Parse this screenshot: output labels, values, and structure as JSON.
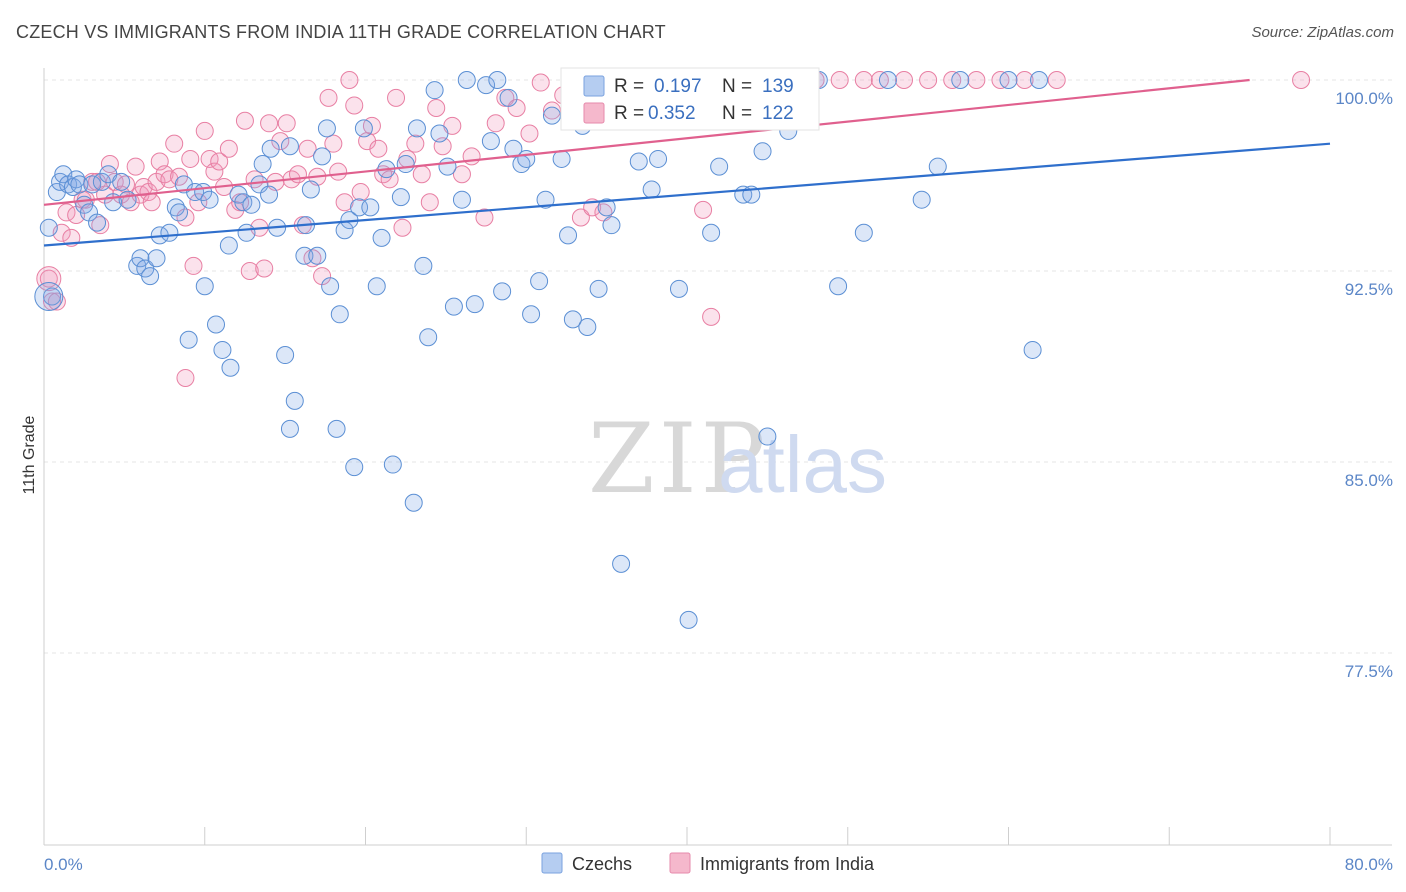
{
  "header": {
    "title": "CZECH VS IMMIGRANTS FROM INDIA 11TH GRADE CORRELATION CHART",
    "source": "Source: ZipAtlas.com"
  },
  "watermark": {
    "zip": "ZIP",
    "atlas": "atlas"
  },
  "legend_top": {
    "r_label": "R =",
    "n_label": "N =",
    "czechs": {
      "r": "0.197",
      "n": "139"
    },
    "india": {
      "r": "0.352",
      "n": "122"
    }
  },
  "bottom_legend": {
    "czechs": "Czechs",
    "india": "Immigrants from India"
  },
  "colors": {
    "czechs": "#5b8fd4",
    "india": "#e87fa3",
    "czechs_line": "#2f6fcc",
    "india_line": "#e0608e",
    "tick_text": "#5b86c7"
  },
  "chart_data": {
    "type": "scatter",
    "title": "CZECH VS IMMIGRANTS FROM INDIA 11TH GRADE CORRELATION CHART",
    "xlabel": "",
    "ylabel": "11th Grade",
    "xlim": [
      0,
      80
    ],
    "ylim": [
      70,
      101.5
    ],
    "x_tick_labels": [
      "0.0%",
      "80.0%"
    ],
    "y_ticks": [
      77.5,
      85.0,
      92.5,
      100.0
    ],
    "y_tick_labels": [
      "77.5%",
      "85.0%",
      "92.5%",
      "100.0%"
    ],
    "grid": true,
    "legend_position": "top-center",
    "series": [
      {
        "name": "Czechs",
        "trend": {
          "x": [
            0,
            80
          ],
          "y": [
            93.5,
            97.5
          ]
        },
        "points": [
          [
            0.3,
            94.2
          ],
          [
            0.5,
            91.5
          ],
          [
            0.8,
            95.6
          ],
          [
            1.0,
            96.0
          ],
          [
            1.2,
            96.3
          ],
          [
            1.5,
            95.9
          ],
          [
            1.8,
            95.8
          ],
          [
            2.0,
            96.1
          ],
          [
            2.2,
            95.9
          ],
          [
            2.5,
            95.1
          ],
          [
            2.8,
            94.8
          ],
          [
            3.0,
            95.9
          ],
          [
            3.3,
            94.4
          ],
          [
            3.6,
            96.0
          ],
          [
            4.0,
            96.3
          ],
          [
            4.3,
            95.2
          ],
          [
            4.8,
            96.0
          ],
          [
            5.2,
            95.3
          ],
          [
            5.8,
            92.7
          ],
          [
            6.0,
            93.0
          ],
          [
            6.3,
            92.6
          ],
          [
            6.6,
            92.3
          ],
          [
            7.0,
            93.0
          ],
          [
            7.2,
            93.9
          ],
          [
            7.8,
            94.0
          ],
          [
            8.2,
            95.0
          ],
          [
            8.4,
            94.8
          ],
          [
            8.7,
            95.9
          ],
          [
            9.0,
            89.8
          ],
          [
            9.4,
            95.6
          ],
          [
            9.9,
            95.6
          ],
          [
            10.0,
            91.9
          ],
          [
            10.3,
            95.3
          ],
          [
            10.7,
            90.4
          ],
          [
            11.1,
            89.4
          ],
          [
            11.5,
            93.5
          ],
          [
            11.6,
            88.7
          ],
          [
            12.1,
            95.5
          ],
          [
            12.4,
            95.2
          ],
          [
            12.6,
            94.0
          ],
          [
            12.9,
            95.1
          ],
          [
            13.4,
            95.9
          ],
          [
            13.6,
            96.7
          ],
          [
            14.0,
            95.5
          ],
          [
            14.1,
            97.3
          ],
          [
            14.5,
            94.2
          ],
          [
            15.0,
            89.2
          ],
          [
            15.3,
            97.4
          ],
          [
            15.6,
            87.4
          ],
          [
            15.3,
            86.3
          ],
          [
            16.2,
            93.1
          ],
          [
            16.3,
            94.3
          ],
          [
            16.6,
            95.7
          ],
          [
            17.0,
            93.1
          ],
          [
            17.3,
            97.0
          ],
          [
            17.6,
            98.1
          ],
          [
            17.8,
            91.9
          ],
          [
            18.2,
            86.3
          ],
          [
            18.4,
            90.8
          ],
          [
            18.7,
            94.1
          ],
          [
            19.0,
            94.5
          ],
          [
            19.3,
            84.8
          ],
          [
            19.6,
            95.0
          ],
          [
            19.9,
            98.1
          ],
          [
            20.3,
            95.0
          ],
          [
            20.7,
            91.9
          ],
          [
            21.0,
            93.8
          ],
          [
            21.3,
            96.5
          ],
          [
            21.7,
            84.9
          ],
          [
            22.2,
            95.4
          ],
          [
            22.5,
            96.7
          ],
          [
            23.0,
            83.4
          ],
          [
            23.2,
            98.1
          ],
          [
            23.6,
            92.7
          ],
          [
            23.9,
            89.9
          ],
          [
            24.3,
            99.6
          ],
          [
            24.6,
            97.9
          ],
          [
            25.1,
            96.6
          ],
          [
            25.5,
            91.1
          ],
          [
            26.0,
            95.3
          ],
          [
            26.3,
            100.0
          ],
          [
            26.8,
            91.2
          ],
          [
            27.5,
            99.8
          ],
          [
            27.8,
            97.6
          ],
          [
            28.2,
            100.0
          ],
          [
            28.5,
            91.7
          ],
          [
            28.9,
            99.3
          ],
          [
            29.2,
            97.3
          ],
          [
            29.7,
            96.7
          ],
          [
            30.0,
            96.9
          ],
          [
            30.3,
            90.8
          ],
          [
            30.8,
            92.1
          ],
          [
            31.2,
            95.3
          ],
          [
            31.6,
            98.6
          ],
          [
            32.2,
            96.9
          ],
          [
            32.6,
            93.9
          ],
          [
            32.9,
            90.6
          ],
          [
            33.2,
            99.6
          ],
          [
            33.5,
            98.2
          ],
          [
            33.8,
            90.3
          ],
          [
            34.5,
            91.8
          ],
          [
            35.0,
            95.0
          ],
          [
            35.3,
            94.3
          ],
          [
            35.9,
            81.0
          ],
          [
            36.3,
            100.0
          ],
          [
            37.0,
            96.8
          ],
          [
            37.8,
            95.7
          ],
          [
            38.2,
            96.9
          ],
          [
            39.0,
            100.0
          ],
          [
            39.5,
            91.8
          ],
          [
            40.1,
            78.8
          ],
          [
            41.5,
            94.0
          ],
          [
            42.0,
            96.6
          ],
          [
            43.5,
            95.5
          ],
          [
            44.0,
            95.5
          ],
          [
            44.7,
            97.2
          ],
          [
            45.0,
            86.0
          ],
          [
            46.3,
            98.0
          ],
          [
            46.6,
            99.4
          ],
          [
            46.8,
            99.3
          ],
          [
            48.2,
            100.0
          ],
          [
            49.4,
            91.9
          ],
          [
            51.0,
            94.0
          ],
          [
            52.5,
            100.0
          ],
          [
            54.6,
            95.3
          ],
          [
            55.6,
            96.6
          ],
          [
            57.0,
            100.0
          ],
          [
            60.0,
            100.0
          ],
          [
            61.5,
            89.4
          ],
          [
            61.9,
            100.0
          ]
        ]
      },
      {
        "name": "Immigrants from India",
        "trend": {
          "x": [
            0,
            75
          ],
          "y": [
            95.1,
            100.0
          ]
        },
        "points": [
          [
            0.3,
            92.2
          ],
          [
            0.5,
            91.3
          ],
          [
            0.8,
            91.3
          ],
          [
            1.1,
            94.0
          ],
          [
            1.4,
            94.8
          ],
          [
            1.7,
            93.8
          ],
          [
            2.0,
            94.7
          ],
          [
            2.4,
            95.3
          ],
          [
            2.6,
            95.3
          ],
          [
            3.0,
            96.0
          ],
          [
            3.3,
            96.0
          ],
          [
            3.5,
            94.3
          ],
          [
            3.8,
            95.5
          ],
          [
            4.1,
            96.7
          ],
          [
            4.4,
            96.0
          ],
          [
            4.8,
            95.5
          ],
          [
            5.1,
            95.9
          ],
          [
            5.4,
            95.2
          ],
          [
            5.7,
            96.6
          ],
          [
            6.0,
            95.5
          ],
          [
            6.2,
            95.8
          ],
          [
            6.5,
            95.6
          ],
          [
            6.7,
            95.2
          ],
          [
            7.0,
            96.0
          ],
          [
            7.2,
            96.8
          ],
          [
            7.5,
            96.3
          ],
          [
            7.8,
            96.1
          ],
          [
            8.1,
            97.5
          ],
          [
            8.4,
            96.2
          ],
          [
            8.8,
            94.6
          ],
          [
            9.1,
            96.9
          ],
          [
            9.3,
            92.7
          ],
          [
            9.6,
            95.2
          ],
          [
            10.0,
            98.0
          ],
          [
            10.3,
            96.9
          ],
          [
            10.6,
            96.4
          ],
          [
            10.9,
            96.8
          ],
          [
            11.2,
            95.8
          ],
          [
            11.5,
            97.3
          ],
          [
            11.9,
            94.9
          ],
          [
            12.2,
            95.2
          ],
          [
            12.5,
            98.4
          ],
          [
            12.8,
            92.5
          ],
          [
            13.1,
            96.1
          ],
          [
            13.4,
            94.2
          ],
          [
            13.7,
            92.6
          ],
          [
            14.0,
            98.3
          ],
          [
            14.4,
            96.0
          ],
          [
            14.7,
            97.6
          ],
          [
            15.1,
            98.3
          ],
          [
            15.4,
            96.1
          ],
          [
            15.8,
            96.3
          ],
          [
            16.1,
            94.3
          ],
          [
            16.4,
            97.3
          ],
          [
            16.7,
            93.0
          ],
          [
            17.0,
            96.2
          ],
          [
            17.3,
            92.3
          ],
          [
            17.7,
            99.3
          ],
          [
            18.0,
            97.5
          ],
          [
            18.3,
            96.4
          ],
          [
            18.7,
            95.2
          ],
          [
            19.0,
            100.0
          ],
          [
            19.3,
            99.0
          ],
          [
            19.7,
            95.6
          ],
          [
            20.1,
            97.6
          ],
          [
            20.4,
            98.2
          ],
          [
            20.8,
            97.3
          ],
          [
            21.1,
            96.3
          ],
          [
            21.5,
            96.1
          ],
          [
            21.9,
            99.3
          ],
          [
            22.3,
            94.2
          ],
          [
            22.6,
            96.9
          ],
          [
            23.1,
            97.5
          ],
          [
            23.5,
            96.3
          ],
          [
            24.0,
            95.2
          ],
          [
            24.4,
            98.9
          ],
          [
            24.8,
            97.4
          ],
          [
            25.4,
            98.2
          ],
          [
            26.0,
            96.3
          ],
          [
            26.6,
            97.0
          ],
          [
            27.4,
            94.6
          ],
          [
            28.1,
            98.3
          ],
          [
            28.7,
            99.3
          ],
          [
            29.4,
            98.9
          ],
          [
            30.2,
            97.9
          ],
          [
            30.9,
            99.9
          ],
          [
            31.6,
            98.8
          ],
          [
            32.3,
            99.4
          ],
          [
            32.8,
            100.0
          ],
          [
            33.4,
            94.6
          ],
          [
            34.1,
            95.0
          ],
          [
            34.8,
            94.8
          ],
          [
            8.8,
            88.3
          ],
          [
            35.2,
            99.6
          ],
          [
            36.0,
            98.5
          ],
          [
            37.0,
            100.0
          ],
          [
            37.9,
            99.1
          ],
          [
            38.5,
            98.8
          ],
          [
            39.2,
            99.7
          ],
          [
            40.0,
            100.0
          ],
          [
            40.6,
            100.0
          ],
          [
            41.0,
            94.9
          ],
          [
            41.5,
            90.7
          ],
          [
            42.1,
            100.0
          ],
          [
            42.8,
            100.0
          ],
          [
            43.6,
            99.1
          ],
          [
            44.3,
            100.0
          ],
          [
            45.0,
            98.9
          ],
          [
            46.0,
            99.6
          ],
          [
            47.0,
            100.0
          ],
          [
            48.0,
            100.0
          ],
          [
            49.5,
            100.0
          ],
          [
            51.0,
            100.0
          ],
          [
            52.0,
            100.0
          ],
          [
            53.5,
            100.0
          ],
          [
            55.0,
            100.0
          ],
          [
            56.5,
            100.0
          ],
          [
            58.0,
            100.0
          ],
          [
            59.5,
            100.0
          ],
          [
            61.0,
            100.0
          ],
          [
            63.0,
            100.0
          ],
          [
            78.2,
            100.0
          ]
        ]
      }
    ]
  }
}
